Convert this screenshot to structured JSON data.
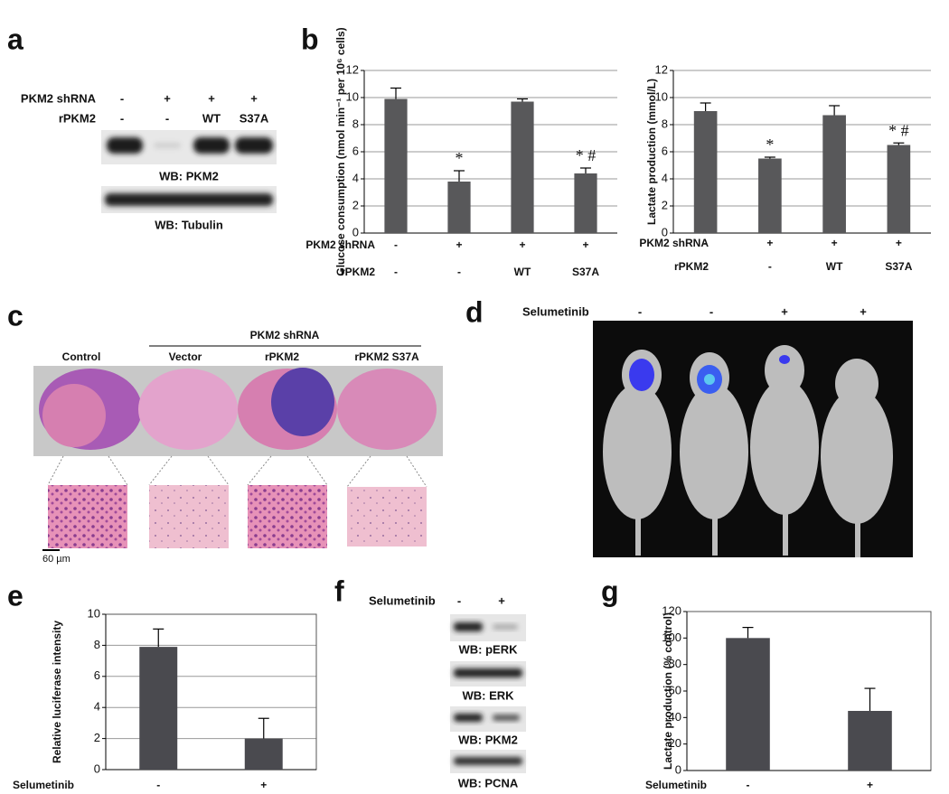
{
  "panels": {
    "a": "a",
    "b": "b",
    "c": "c",
    "d": "d",
    "e": "e",
    "f": "f",
    "g": "g"
  },
  "panel_a": {
    "rows": [
      {
        "label": "PKM2 shRNA",
        "values": [
          "-",
          "+",
          "+",
          "+"
        ]
      },
      {
        "label": "rPKM2",
        "values": [
          "-",
          "-",
          "WT",
          "S37A"
        ]
      }
    ],
    "blots": [
      "WB: PKM2",
      "WB: Tubulin"
    ]
  },
  "panel_c": {
    "group": "PKM2 shRNA",
    "columns": [
      "Control",
      "Vector",
      "rPKM2",
      "rPKM2 S37A"
    ],
    "scale": "60 µm"
  },
  "panel_d": {
    "label": "Selumetinib",
    "values": [
      "-",
      "-",
      "+",
      "+"
    ]
  },
  "panel_f": {
    "label": "Selumetinib",
    "values": [
      "-",
      "+"
    ],
    "blots": [
      "WB: pERK",
      "WB: ERK",
      "WB: PKM2",
      "WB: PCNA"
    ]
  },
  "chart_data": [
    {
      "type": "bar",
      "ylabel": "Glucose consumption (nmol min⁻¹ per 10⁶ cells)",
      "values": [
        9.9,
        3.8,
        9.7,
        4.4
      ],
      "errors": [
        0.8,
        0.8,
        0.2,
        0.4
      ],
      "annotations": [
        null,
        "*",
        null,
        "* #"
      ],
      "color": "#58585a",
      "ylim": [
        0,
        12
      ],
      "yticks": [
        0,
        2,
        4,
        6,
        8,
        10,
        12
      ],
      "grid": true,
      "conditions": [
        {
          "label": "PKM2 shRNA",
          "values": [
            "-",
            "+",
            "+",
            "+"
          ]
        },
        {
          "label": "rPKM2",
          "values": [
            "-",
            "-",
            "WT",
            "S37A"
          ]
        }
      ]
    },
    {
      "type": "bar",
      "ylabel": "Lactate production (mmol/L)",
      "values": [
        9.0,
        5.5,
        8.7,
        6.5
      ],
      "errors": [
        0.6,
        0.1,
        0.7,
        0.15
      ],
      "annotations": [
        null,
        "*",
        null,
        "* #"
      ],
      "color": "#58585a",
      "ylim": [
        0,
        12
      ],
      "yticks": [
        0,
        2,
        4,
        6,
        8,
        10,
        12
      ],
      "grid": true,
      "conditions": [
        {
          "label": "PKM2 shRNA",
          "values": [
            "-",
            "+",
            "+",
            "+"
          ]
        },
        {
          "label": "rPKM2",
          "values": [
            "-",
            "-",
            "WT",
            "S37A"
          ]
        }
      ]
    },
    {
      "type": "bar",
      "ylabel": "Relative luciferase intensity",
      "values": [
        7.9,
        2.0
      ],
      "errors": [
        1.15,
        1.3
      ],
      "color": "#4a4a4f",
      "ylim": [
        0,
        10
      ],
      "yticks": [
        0,
        2,
        4,
        6,
        8,
        10
      ],
      "grid": true,
      "conditions": [
        {
          "label": "Selumetinib",
          "values": [
            "-",
            "+"
          ]
        }
      ]
    },
    {
      "type": "bar",
      "ylabel": "Lactate production (% control)",
      "values": [
        100,
        45
      ],
      "errors": [
        8,
        17
      ],
      "color": "#4a4a4f",
      "ylim": [
        0,
        120
      ],
      "yticks": [
        0,
        20,
        40,
        60,
        80,
        100,
        120
      ],
      "grid": false,
      "conditions": [
        {
          "label": "Selumetinib",
          "values": [
            "-",
            "+"
          ]
        }
      ]
    }
  ]
}
